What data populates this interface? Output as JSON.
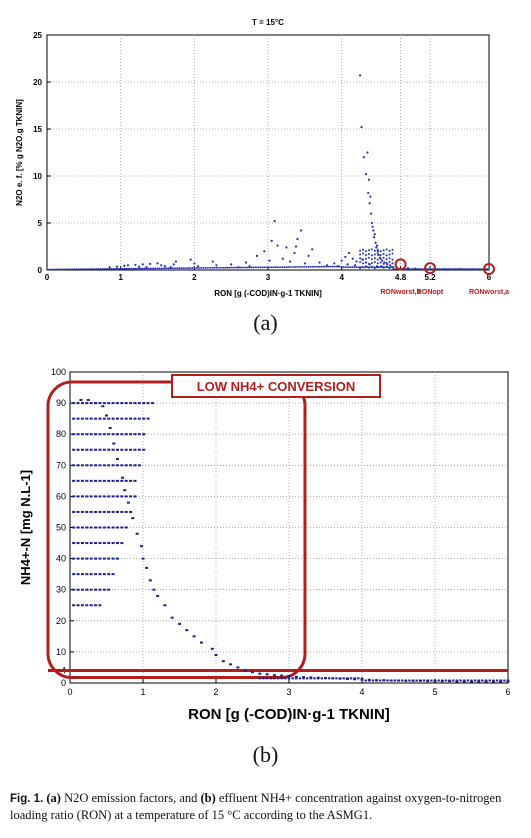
{
  "chart_data": [
    {
      "type": "scatter",
      "panel": "(a)",
      "title": "T = 15°C",
      "xlabel": "RON [g (-COD)IN·g-1 TKNIN]",
      "ylabel": "N2O e. f. [% g N2O.g TKNIN]",
      "xlim": [
        0,
        6
      ],
      "ylim": [
        0,
        25
      ],
      "xticks": [
        "0",
        "1",
        "2",
        "3",
        "4",
        "4.8",
        "5.2",
        "6"
      ],
      "yticks": [
        "0",
        "5",
        "10",
        "15",
        "20",
        "25"
      ],
      "grid": true,
      "series_color": "#1f2fb5",
      "highlight_color": "#b01e1e",
      "markers": [
        {
          "label": "RONworst,b",
          "x": 4.8,
          "y": 0.6
        },
        {
          "label": "RONopt",
          "x": 5.2,
          "y": 0.2
        },
        {
          "label": "RONworst,a",
          "x": 6.0,
          "y": 0.1
        }
      ],
      "points": [
        [
          4.25,
          20.7
        ],
        [
          4.27,
          15.2
        ],
        [
          4.3,
          12.0
        ],
        [
          4.33,
          10.2
        ],
        [
          4.36,
          8.2
        ],
        [
          4.38,
          7.1
        ],
        [
          4.4,
          6.0
        ],
        [
          4.41,
          5.0
        ],
        [
          4.43,
          4.2
        ],
        [
          4.44,
          3.5
        ],
        [
          4.46,
          2.9
        ],
        [
          4.47,
          2.4
        ],
        [
          4.49,
          2.0
        ],
        [
          4.5,
          1.6
        ],
        [
          4.52,
          1.3
        ],
        [
          4.55,
          1.0
        ],
        [
          4.58,
          0.8
        ],
        [
          4.62,
          0.6
        ],
        [
          4.66,
          0.5
        ],
        [
          4.35,
          12.5
        ],
        [
          4.37,
          9.6
        ],
        [
          4.39,
          7.8
        ],
        [
          4.42,
          4.6
        ],
        [
          4.45,
          3.8
        ],
        [
          4.48,
          2.6
        ],
        [
          3.09,
          5.2
        ],
        [
          3.05,
          3.1
        ],
        [
          3.13,
          2.6
        ],
        [
          2.95,
          2.0
        ],
        [
          3.25,
          2.4
        ],
        [
          3.45,
          4.2
        ],
        [
          3.4,
          3.3
        ],
        [
          3.38,
          2.5
        ],
        [
          3.36,
          1.8
        ],
        [
          3.6,
          2.2
        ],
        [
          3.55,
          1.5
        ],
        [
          3.02,
          1.0
        ],
        [
          2.85,
          1.5
        ],
        [
          3.2,
          1.2
        ],
        [
          3.3,
          0.9
        ],
        [
          3.5,
          0.7
        ],
        [
          3.7,
          0.8
        ],
        [
          3.8,
          0.5
        ],
        [
          3.9,
          0.7
        ],
        [
          4.0,
          1.0
        ],
        [
          4.05,
          1.4
        ],
        [
          4.1,
          1.8
        ],
        [
          4.15,
          1.2
        ],
        [
          4.2,
          0.9
        ],
        [
          3.95,
          0.4
        ],
        [
          4.08,
          0.6
        ],
        [
          4.18,
          0.5
        ],
        [
          4.28,
          1.1
        ],
        [
          4.33,
          0.8
        ],
        [
          4.38,
          0.6
        ],
        [
          4.48,
          0.4
        ],
        [
          4.55,
          0.35
        ],
        [
          4.7,
          0.3
        ],
        [
          4.9,
          0.2
        ],
        [
          5.0,
          0.15
        ],
        [
          5.4,
          0.1
        ],
        [
          5.6,
          0.08
        ],
        [
          5.8,
          0.06
        ],
        [
          1.75,
          0.9
        ],
        [
          1.72,
          0.6
        ],
        [
          1.68,
          0.3
        ],
        [
          1.95,
          1.1
        ],
        [
          2.0,
          0.7
        ],
        [
          2.05,
          0.4
        ],
        [
          2.25,
          0.9
        ],
        [
          2.3,
          0.5
        ],
        [
          2.5,
          0.6
        ],
        [
          2.6,
          0.3
        ],
        [
          2.7,
          0.8
        ],
        [
          2.75,
          0.4
        ],
        [
          1.05,
          0.45
        ],
        [
          1.1,
          0.5
        ],
        [
          1.2,
          0.55
        ],
        [
          1.3,
          0.6
        ],
        [
          1.4,
          0.65
        ],
        [
          1.5,
          0.7
        ],
        [
          1.55,
          0.5
        ],
        [
          1.6,
          0.4
        ],
        [
          1.25,
          0.35
        ],
        [
          1.35,
          0.3
        ],
        [
          0.95,
          0.35
        ],
        [
          0.85,
          0.3
        ]
      ]
    },
    {
      "type": "scatter",
      "panel": "(b)",
      "title": "",
      "xlabel": "RON [g (-COD)IN·g-1 TKNIN]",
      "ylabel": "NH4+-N [mg N.L-1]",
      "xlim": [
        0,
        6
      ],
      "ylim": [
        0,
        100
      ],
      "xticks": [
        "0",
        "1",
        "2",
        "3",
        "4",
        "5",
        "6"
      ],
      "yticks": [
        "0",
        "4",
        "10",
        "20",
        "30",
        "40",
        "50",
        "60",
        "70",
        "80",
        "90",
        "100"
      ],
      "grid": true,
      "series_color": "#1a1f8c",
      "region_color": "#b01e1e",
      "annotation": "LOW NH4+ CONVERSION",
      "threshold_y": 4,
      "levels": [
        25,
        30,
        35,
        40,
        45,
        50,
        55,
        60,
        65,
        70,
        75,
        80,
        85,
        90
      ],
      "level_x_max": [
        0.45,
        0.55,
        0.62,
        0.7,
        0.74,
        0.8,
        0.84,
        0.9,
        0.94,
        0.98,
        1.02,
        1.06,
        1.1,
        1.15
      ],
      "points_tail": [
        [
          0.15,
          91
        ],
        [
          0.25,
          91
        ],
        [
          0.35,
          90
        ],
        [
          0.45,
          89
        ],
        [
          0.5,
          86
        ],
        [
          0.55,
          82
        ],
        [
          0.6,
          77
        ],
        [
          0.65,
          72
        ],
        [
          0.72,
          66
        ],
        [
          0.75,
          62
        ],
        [
          0.8,
          58
        ],
        [
          0.86,
          53
        ],
        [
          0.92,
          48
        ],
        [
          0.98,
          44
        ],
        [
          1.0,
          40
        ],
        [
          1.05,
          37
        ],
        [
          1.1,
          33
        ],
        [
          1.15,
          30
        ],
        [
          1.2,
          28
        ],
        [
          1.3,
          25
        ],
        [
          1.4,
          21
        ],
        [
          1.5,
          19
        ],
        [
          1.6,
          17
        ],
        [
          1.7,
          15
        ],
        [
          1.8,
          13
        ],
        [
          1.95,
          11
        ],
        [
          2.0,
          9
        ],
        [
          2.1,
          7
        ],
        [
          2.2,
          6
        ],
        [
          2.3,
          5
        ],
        [
          2.4,
          4
        ],
        [
          2.5,
          3.5
        ],
        [
          2.6,
          3
        ],
        [
          2.7,
          2.8
        ],
        [
          2.8,
          2.5
        ],
        [
          2.9,
          2.4
        ],
        [
          3.0,
          2.2
        ],
        [
          3.1,
          2.0
        ],
        [
          3.2,
          1.9
        ],
        [
          3.3,
          1.8
        ],
        [
          3.4,
          1.7
        ],
        [
          3.5,
          1.6
        ],
        [
          3.6,
          1.5
        ],
        [
          3.7,
          1.4
        ],
        [
          3.8,
          1.3
        ],
        [
          3.9,
          1.2
        ],
        [
          4.0,
          1.1
        ],
        [
          4.1,
          1.0
        ],
        [
          4.2,
          0.9
        ],
        [
          4.3,
          0.9
        ],
        [
          4.4,
          0.8
        ],
        [
          4.5,
          0.8
        ],
        [
          4.6,
          0.7
        ],
        [
          4.7,
          0.7
        ],
        [
          4.8,
          0.7
        ],
        [
          4.9,
          0.6
        ],
        [
          5.0,
          0.6
        ],
        [
          5.1,
          0.6
        ],
        [
          5.2,
          0.6
        ],
        [
          5.3,
          0.5
        ],
        [
          5.4,
          0.5
        ],
        [
          5.5,
          0.5
        ],
        [
          5.6,
          0.5
        ],
        [
          5.7,
          0.5
        ],
        [
          5.8,
          0.5
        ],
        [
          5.9,
          0.5
        ],
        [
          6.0,
          0.5
        ]
      ]
    }
  ],
  "panel_a_label": "(a)",
  "panel_b_label": "(b)",
  "caption": {
    "fig": "Fig. 1.",
    "a": "(a)",
    "a_text": " N2O emission factors, and ",
    "b": "(b)",
    "b_text": " effluent NH4+ concentration against oxygen-to-nitrogen loading ratio (RON) at a temperature of 15 °C according to the ASMG1."
  }
}
